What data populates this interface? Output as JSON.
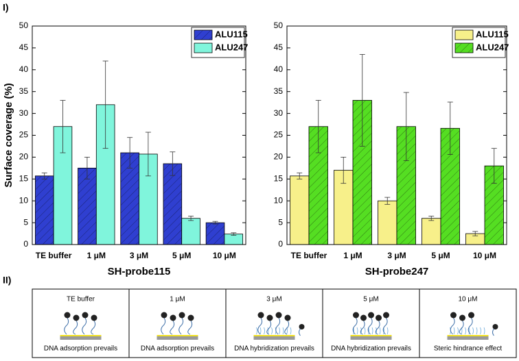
{
  "panel_labels": [
    "I)",
    "II)"
  ],
  "chart_data": [
    {
      "type": "bar",
      "xlabel": "SH-probe115",
      "ylabel": "Surface coverage (%)",
      "categories": [
        "TE buffer",
        "1 μM",
        "3 μM",
        "5 μM",
        "10 μM"
      ],
      "series": [
        {
          "name": "ALU115",
          "color": "#2f3fd0",
          "hatch": true,
          "values": [
            15.7,
            17.5,
            21,
            18.5,
            5
          ],
          "errors": [
            0.7,
            2.5,
            3.5,
            2.7,
            0.3
          ]
        },
        {
          "name": "ALU247",
          "color": "#80f5dc",
          "hatch": false,
          "values": [
            27,
            32,
            20.7,
            6,
            2.4
          ],
          "errors": [
            6,
            10,
            5,
            0.5,
            0.3
          ]
        }
      ],
      "ylim": [
        0,
        50
      ],
      "yticks": [
        0,
        5,
        10,
        15,
        20,
        25,
        30,
        35,
        40,
        45,
        50
      ],
      "legend": "upper right"
    },
    {
      "type": "bar",
      "xlabel": "SH-probe247",
      "categories": [
        "TE buffer",
        "1 μM",
        "3 μM",
        "5 μM",
        "10 μM"
      ],
      "series": [
        {
          "name": "ALU115",
          "color": "#f7f08a",
          "hatch": false,
          "values": [
            15.7,
            17,
            10,
            6,
            2.5
          ],
          "errors": [
            0.7,
            3,
            0.8,
            0.5,
            0.5
          ]
        },
        {
          "name": "ALU247",
          "color": "#55de22",
          "hatch": true,
          "values": [
            27,
            33,
            27,
            26.6,
            18
          ],
          "errors": [
            6,
            10.5,
            7.8,
            6,
            4
          ]
        }
      ],
      "ylim": [
        0,
        50
      ],
      "yticks": [
        0,
        5,
        10,
        15,
        20,
        25,
        30,
        35,
        40,
        45,
        50
      ],
      "legend": "upper right"
    }
  ],
  "diagram": {
    "panels": [
      {
        "title": "TE buffer",
        "caption": "DNA adsorption prevails"
      },
      {
        "title": "1 μM",
        "caption": "DNA adsorption prevails"
      },
      {
        "title": "3 μM",
        "caption": "DNA hybridization prevails"
      },
      {
        "title": "5 μM",
        "caption": "DNA hybridization prevails"
      },
      {
        "title": "10 μM",
        "caption": "Steric hindrance effect"
      }
    ]
  }
}
